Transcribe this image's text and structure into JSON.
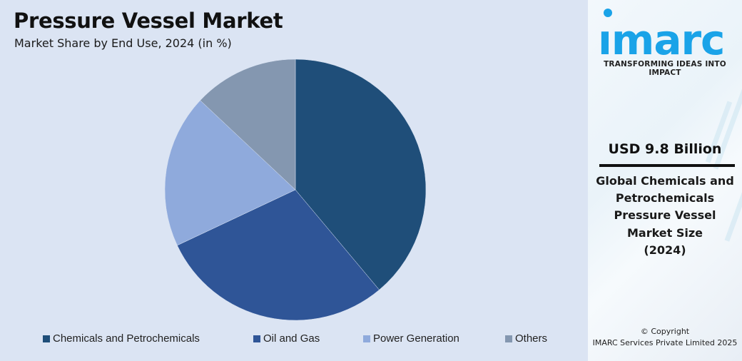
{
  "header": {
    "title": "Pressure Vessel Market",
    "subtitle": "Market Share by End Use, 2024 (in %)"
  },
  "legend": {
    "items": [
      {
        "label": "Chemicals and Petrochemicals",
        "color": "#1f4e79"
      },
      {
        "label": "Oil and Gas",
        "color": "#2f5597"
      },
      {
        "label": "Power Generation",
        "color": "#8faadc"
      },
      {
        "label": "Others",
        "color": "#8497b0"
      }
    ]
  },
  "sidebar": {
    "logo_text": "imarc",
    "logo_color": "#1aa3e8",
    "tagline": "TRANSFORMING IDEAS INTO IMPACT",
    "value": "USD 9.8 Billion",
    "description_lines": [
      "Global Chemicals and",
      "Petrochemicals",
      "Pressure Vessel",
      "Market Size",
      "(2024)"
    ],
    "copyright_line1": "© Copyright",
    "copyright_line2": "IMARC Services Private Limited 2025"
  },
  "chart_data": {
    "type": "pie",
    "title": "Pressure Vessel Market",
    "subtitle": "Market Share by End Use, 2024 (in %)",
    "categories": [
      "Chemicals and Petrochemicals",
      "Oil and Gas",
      "Power Generation",
      "Others"
    ],
    "values": [
      38.9,
      29.1,
      19.0,
      13.0
    ],
    "colors": [
      "#1f4e79",
      "#2f5597",
      "#8faadc",
      "#8497b0"
    ],
    "start_angle": "12 o'clock, clockwise",
    "legend_position": "bottom",
    "data_labels": false
  }
}
